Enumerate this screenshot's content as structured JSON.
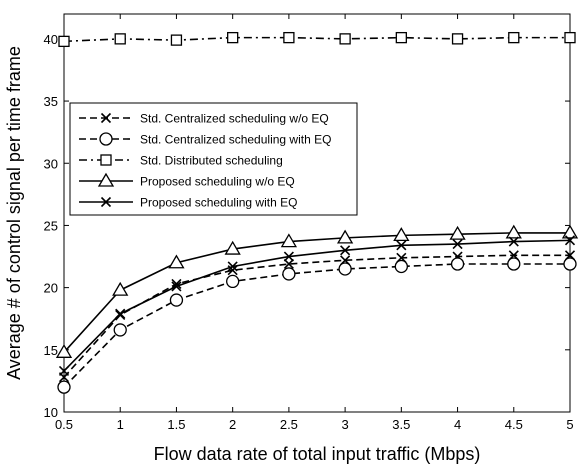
{
  "chart_data": {
    "type": "line",
    "xlabel": "Flow data rate of total input traffic (Mbps)",
    "ylabel": "Average # of control signal per time frame",
    "xlim": [
      0.5,
      5
    ],
    "ylim": [
      10,
      42
    ],
    "xticks": [
      0.5,
      1,
      1.5,
      2,
      2.5,
      3,
      3.5,
      4,
      4.5,
      5
    ],
    "xtick_labels": [
      "0.5",
      "1",
      "1.5",
      "2",
      "2.5",
      "3",
      "3.5",
      "4",
      "4.5",
      "5"
    ],
    "yticks": [
      10,
      15,
      20,
      25,
      30,
      35,
      40
    ],
    "ytick_labels": [
      "10",
      "15",
      "20",
      "25",
      "30",
      "35",
      "40"
    ],
    "grid": false,
    "legend_position": "center-left",
    "x": [
      0.5,
      1,
      1.5,
      2,
      2.5,
      3,
      3.5,
      4,
      4.5,
      5
    ],
    "series": [
      {
        "name": "Std. Centralized scheduling w/o EQ",
        "marker": "x",
        "linestyle": "dashed",
        "color": "#000000",
        "values": [
          12.8,
          17.8,
          20.3,
          21.4,
          21.9,
          22.2,
          22.4,
          22.5,
          22.6,
          22.6
        ]
      },
      {
        "name": "Std. Centralized scheduling with EQ",
        "marker": "circle",
        "linestyle": "dashed",
        "color": "#000000",
        "values": [
          12.0,
          16.6,
          19.0,
          20.5,
          21.1,
          21.5,
          21.7,
          21.9,
          21.9,
          21.9
        ]
      },
      {
        "name": "Std. Distributed scheduling",
        "marker": "square",
        "linestyle": "dashdot",
        "color": "#000000",
        "values": [
          39.8,
          40.0,
          39.9,
          40.1,
          40.1,
          40.0,
          40.1,
          40.0,
          40.1,
          40.1
        ]
      },
      {
        "name": "Proposed scheduling w/o EQ",
        "marker": "triangle",
        "linestyle": "solid",
        "color": "#000000",
        "values": [
          14.8,
          19.8,
          22.0,
          23.1,
          23.7,
          24.0,
          24.2,
          24.3,
          24.4,
          24.4
        ]
      },
      {
        "name": "Proposed scheduling with EQ",
        "marker": "x",
        "linestyle": "solid",
        "color": "#000000",
        "values": [
          13.3,
          17.9,
          20.1,
          21.7,
          22.5,
          23.0,
          23.4,
          23.5,
          23.7,
          23.8
        ]
      }
    ]
  }
}
